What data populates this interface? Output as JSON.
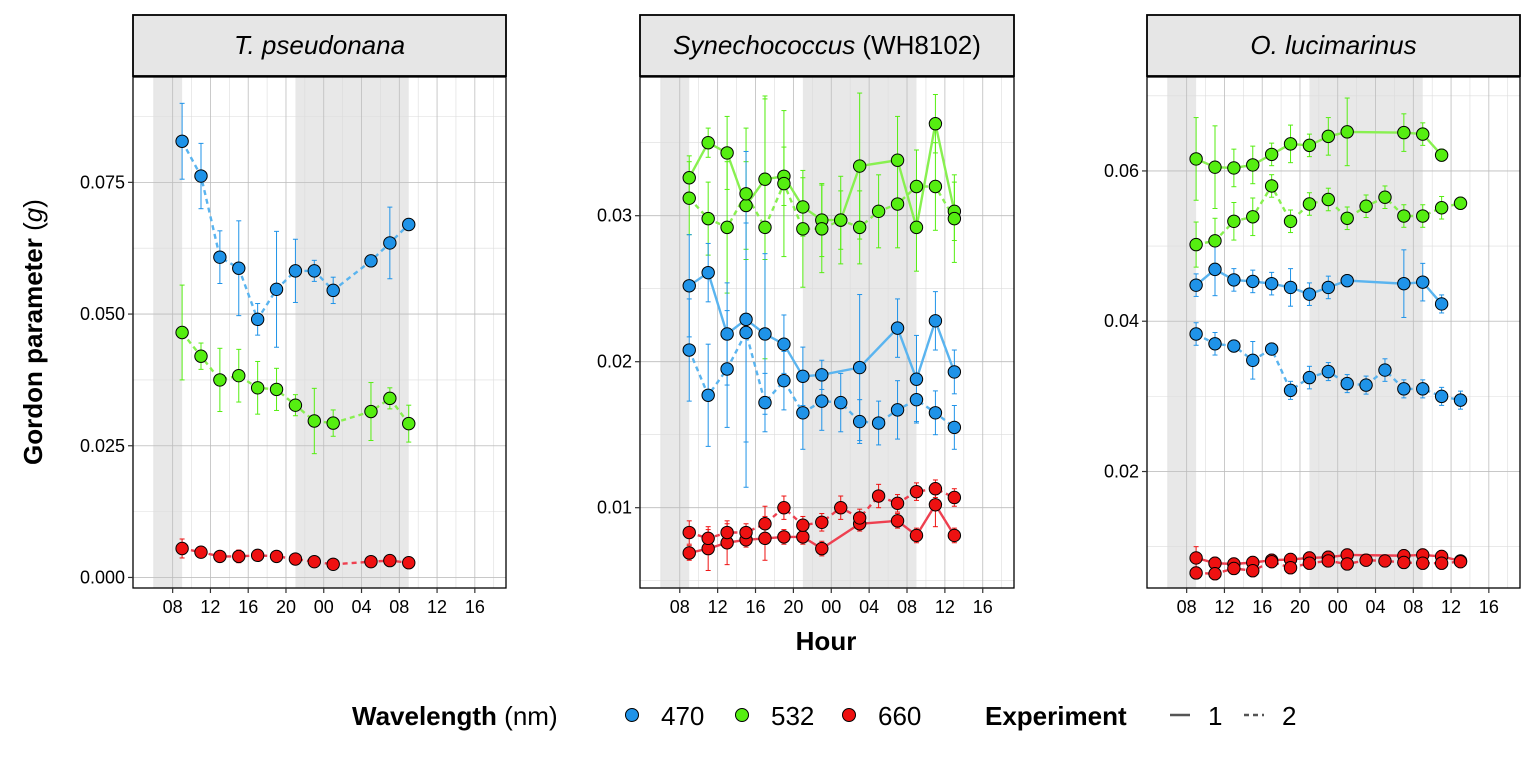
{
  "chart_data": {
    "type": "scatter",
    "xlabel": "Hour",
    "ylabel": "Gordon parameter",
    "ylabel_symbol": "g",
    "x_ticks": [
      "08",
      "12",
      "16",
      "20",
      "00",
      "04",
      "08",
      "12",
      "16"
    ],
    "legend": {
      "wavelength_title": "Wavelength",
      "wavelength_unit": "nm",
      "wavelengths": [
        {
          "label": "470",
          "color": "#1f93e8"
        },
        {
          "label": "532",
          "color": "#55ee11"
        },
        {
          "label": "660",
          "color": "#ee1111"
        }
      ],
      "experiment_title": "Experiment",
      "experiments": [
        {
          "label": "1",
          "line": "solid"
        },
        {
          "label": "2",
          "line": "dashed"
        }
      ]
    },
    "panels": [
      {
        "title": "T. pseudonana",
        "title_suffix": "",
        "ylim": [
          -0.002,
          0.095
        ],
        "yticks": [
          0.0,
          0.025,
          0.05,
          0.075
        ],
        "ytick_labels": [
          "0.000",
          "0.025",
          "0.050",
          "0.075"
        ],
        "night_bands": [
          [
            6,
            9
          ],
          [
            21,
            33
          ]
        ],
        "series": [
          {
            "wavelength": "470",
            "experiment": "2",
            "x": [
              9,
              11,
              13,
              15,
              17,
              19,
              21,
              23,
              25,
              29,
              31,
              33
            ],
            "y": [
              0.0828,
              0.0762,
              0.0608,
              0.0587,
              0.049,
              0.0547,
              0.0582,
              0.0582,
              0.0545,
              0.0601,
              0.0635,
              0.067
            ],
            "err": [
              0.0072,
              0.0062,
              0.005,
              0.009,
              0.003,
              0.011,
              0.006,
              0.002,
              0.0025,
              0,
              0.0068,
              0
            ]
          },
          {
            "wavelength": "532",
            "experiment": "2",
            "x": [
              9,
              11,
              13,
              15,
              17,
              19,
              21,
              23,
              25,
              29,
              31,
              33
            ],
            "y": [
              0.0465,
              0.042,
              0.0375,
              0.0383,
              0.036,
              0.0357,
              0.0327,
              0.0297,
              0.0293,
              0.0315,
              0.034,
              0.0292
            ],
            "err": [
              0.009,
              0.0025,
              0.006,
              0.005,
              0.005,
              0.004,
              0.002,
              0.0062,
              0.0025,
              0.0055,
              0.002,
              0.0035
            ]
          },
          {
            "wavelength": "660",
            "experiment": "2",
            "x": [
              9,
              11,
              13,
              15,
              17,
              19,
              21,
              23,
              25,
              29,
              31,
              33
            ],
            "y": [
              0.0055,
              0.0048,
              0.004,
              0.004,
              0.0042,
              0.004,
              0.0035,
              0.003,
              0.0025,
              0.003,
              0.0032,
              0.0028
            ],
            "err": [
              0.0018,
              0.0008,
              0.0008,
              0.0012,
              0.0008,
              0.0008,
              0.0008,
              0.0008,
              0.0008,
              0.0006,
              0.0006,
              0.0006
            ]
          }
        ]
      },
      {
        "title": "Synechococcus",
        "title_suffix": "(WH8102)",
        "ylim": [
          0.0045,
          0.0395
        ],
        "yticks": [
          0.01,
          0.02,
          0.03
        ],
        "ytick_labels": [
          "0.01",
          "0.02",
          "0.03"
        ],
        "night_bands": [
          [
            6,
            9
          ],
          [
            21,
            33
          ]
        ],
        "series": [
          {
            "wavelength": "532",
            "experiment": "1",
            "x": [
              9,
              11,
              13,
              15,
              17,
              19,
              21,
              23,
              25,
              27,
              31,
              33,
              35,
              37
            ],
            "y": [
              0.0326,
              0.035,
              0.0343,
              0.0307,
              0.0325,
              0.0327,
              0.0306,
              0.0297,
              0.0297,
              0.0334,
              0.0338,
              0.0292,
              0.0363,
              0.0303
            ],
            "err": [
              0.0015,
              0.001,
              0.0025,
              0.003,
              0.0055,
              0.002,
              0.002,
              0.0025,
              0.003,
              0.005,
              0.003,
              0.003,
              0.002,
              0.002
            ]
          },
          {
            "wavelength": "532",
            "experiment": "2",
            "x": [
              9,
              11,
              13,
              15,
              17,
              19,
              21,
              23,
              25,
              27,
              29,
              31,
              33,
              35,
              37
            ],
            "y": [
              0.0312,
              0.0298,
              0.0292,
              0.0315,
              0.0292,
              0.0322,
              0.0291,
              0.0291,
              0.0297,
              0.0292,
              0.0303,
              0.0308,
              0.032,
              0.032,
              0.0298
            ],
            "err": [
              0.0025,
              0.0025,
              0.0045,
              0.0045,
              0.009,
              0.005,
              0.004,
              0.003,
              0.002,
              0.0025,
              0.0025,
              0.003,
              0.0025,
              0.003,
              0.003
            ]
          },
          {
            "wavelength": "470",
            "experiment": "1",
            "x": [
              9,
              11,
              13,
              15,
              17,
              19,
              21,
              23,
              27,
              31,
              33,
              35,
              37
            ],
            "y": [
              0.0252,
              0.0261,
              0.0219,
              0.0229,
              0.0219,
              0.0212,
              0.019,
              0.0191,
              0.0196,
              0.0223,
              0.0188,
              0.0228,
              0.0193
            ],
            "err": [
              0.0035,
              0.002,
              0.0035,
              0.0115,
              0.0055,
              0.002,
              0.002,
              0.001,
              0.005,
              0.002,
              0.003,
              0.002,
              0.0015
            ]
          },
          {
            "wavelength": "470",
            "experiment": "2",
            "x": [
              9,
              11,
              13,
              15,
              17,
              19,
              21,
              23,
              25,
              27,
              29,
              31,
              33,
              35,
              37
            ],
            "y": [
              0.0208,
              0.0177,
              0.0195,
              0.022,
              0.0172,
              0.0187,
              0.0165,
              0.0173,
              0.0172,
              0.0159,
              0.0158,
              0.0167,
              0.0174,
              0.0165,
              0.0155
            ],
            "err": [
              0.0035,
              0.0035,
              0.004,
              0.0075,
              0.002,
              0.002,
              0.0025,
              0.002,
              0.002,
              0.0015,
              0.0015,
              0.002,
              0.0015,
              0.0015,
              0.0015
            ]
          },
          {
            "wavelength": "660",
            "experiment": "1",
            "x": [
              9,
              11,
              13,
              15,
              17,
              19,
              21,
              23,
              27,
              31,
              33,
              35,
              37
            ],
            "y": [
              0.0069,
              0.0072,
              0.0076,
              0.0078,
              0.0079,
              0.008,
              0.008,
              0.0072,
              0.0089,
              0.0091,
              0.0081,
              0.0102,
              0.0081
            ],
            "err": [
              0.0005,
              0.0015,
              0.0015,
              0.0005,
              0.0015,
              0.0005,
              0.0005,
              0.0005,
              0.0005,
              0.0005,
              0.0005,
              0.0015,
              0.0005
            ]
          },
          {
            "wavelength": "660",
            "experiment": "2",
            "x": [
              9,
              11,
              13,
              15,
              17,
              19,
              21,
              23,
              25,
              27,
              29,
              31,
              33,
              35,
              37
            ],
            "y": [
              0.0083,
              0.0079,
              0.0083,
              0.0083,
              0.0089,
              0.01,
              0.0088,
              0.009,
              0.01,
              0.0093,
              0.0108,
              0.0103,
              0.0111,
              0.0113,
              0.0107
            ],
            "err": [
              0.0008,
              0.0006,
              0.0006,
              0.0006,
              0.0012,
              0.0008,
              0.0006,
              0.0006,
              0.0008,
              0.0006,
              0.0008,
              0.0006,
              0.0006,
              0.0006,
              0.0006
            ]
          }
        ]
      },
      {
        "title": "O. lucimarinus",
        "title_suffix": "",
        "ylim": [
          0.0045,
          0.0725
        ],
        "yticks": [
          0.02,
          0.04,
          0.06
        ],
        "ytick_labels": [
          "0.02",
          "0.04",
          "0.06"
        ],
        "night_bands": [
          [
            6,
            9
          ],
          [
            21,
            33
          ]
        ],
        "series": [
          {
            "wavelength": "532",
            "experiment": "1",
            "x": [
              9,
              11,
              13,
              15,
              17,
              19,
              21,
              23,
              25,
              31,
              33,
              35
            ],
            "y": [
              0.0616,
              0.0605,
              0.0604,
              0.0608,
              0.0622,
              0.0636,
              0.0634,
              0.0646,
              0.0652,
              0.0651,
              0.0649,
              0.0621
            ],
            "err": [
              0.0055,
              0.0055,
              0.0025,
              0.0025,
              0.0015,
              0.0025,
              0.0015,
              0.0025,
              0.0045,
              0.0025,
              0.0015,
              0.0008
            ]
          },
          {
            "wavelength": "532",
            "experiment": "2",
            "x": [
              9,
              11,
              13,
              15,
              17,
              19,
              21,
              23,
              25,
              27,
              29,
              31,
              33,
              35,
              37
            ],
            "y": [
              0.0502,
              0.0507,
              0.0533,
              0.0539,
              0.058,
              0.0533,
              0.0556,
              0.0562,
              0.0537,
              0.0553,
              0.0565,
              0.054,
              0.054,
              0.0551,
              0.0557
            ],
            "err": [
              0.003,
              0.003,
              0.0025,
              0.0025,
              0.0015,
              0.0015,
              0.0015,
              0.0015,
              0.0015,
              0.0015,
              0.0015,
              0.0015,
              0.0015,
              0.0015,
              0.0008
            ]
          },
          {
            "wavelength": "470",
            "experiment": "1",
            "x": [
              9,
              11,
              13,
              15,
              17,
              19,
              21,
              23,
              25,
              31,
              33,
              35
            ],
            "y": [
              0.0448,
              0.0469,
              0.0455,
              0.0453,
              0.045,
              0.0445,
              0.0436,
              0.0445,
              0.0454,
              0.045,
              0.0452,
              0.0423
            ],
            "err": [
              0.0015,
              0.0035,
              0.0015,
              0.0015,
              0.0015,
              0.0025,
              0.0015,
              0.0015,
              0.0008,
              0.0045,
              0.0025,
              0.0012
            ]
          },
          {
            "wavelength": "470",
            "experiment": "2",
            "x": [
              9,
              11,
              13,
              15,
              17,
              19,
              21,
              23,
              25,
              27,
              29,
              31,
              33,
              35,
              37
            ],
            "y": [
              0.0383,
              0.037,
              0.0367,
              0.0348,
              0.0363,
              0.0308,
              0.0325,
              0.0333,
              0.0317,
              0.0315,
              0.0335,
              0.031,
              0.031,
              0.03,
              0.0295
            ],
            "err": [
              0.0015,
              0.0015,
              0.0008,
              0.0025,
              0.0008,
              0.0012,
              0.0015,
              0.0012,
              0.0012,
              0.0012,
              0.0015,
              0.0012,
              0.0012,
              0.0012,
              0.0012
            ]
          },
          {
            "wavelength": "660",
            "experiment": "1",
            "x": [
              9,
              11,
              13,
              15,
              17,
              19,
              21,
              23,
              25,
              31,
              33,
              35,
              37
            ],
            "y": [
              0.0085,
              0.0078,
              0.0077,
              0.0079,
              0.0082,
              0.0083,
              0.0085,
              0.0086,
              0.0089,
              0.0088,
              0.0089,
              0.0087,
              0.0081
            ],
            "err": [
              0.0015,
              0.0008,
              0.0008,
              0.0008,
              0.0008,
              0.0008,
              0.0008,
              0.0008,
              0.0008,
              0.0008,
              0.0008,
              0.0008,
              0.0005
            ]
          },
          {
            "wavelength": "660",
            "experiment": "2",
            "x": [
              9,
              11,
              13,
              15,
              17,
              19,
              21,
              23,
              25,
              27,
              29,
              31,
              33,
              35,
              37
            ],
            "y": [
              0.0065,
              0.0064,
              0.0071,
              0.0068,
              0.008,
              0.0072,
              0.0078,
              0.0081,
              0.0077,
              0.0082,
              0.0081,
              0.0079,
              0.0078,
              0.0078,
              0.008
            ],
            "err": [
              0.0008,
              0.0008,
              0.0008,
              0.0008,
              0.0008,
              0.0008,
              0.0008,
              0.0008,
              0.0008,
              0.0008,
              0.0008,
              0.0008,
              0.0008,
              0.0008,
              0.0008
            ]
          }
        ]
      }
    ]
  }
}
